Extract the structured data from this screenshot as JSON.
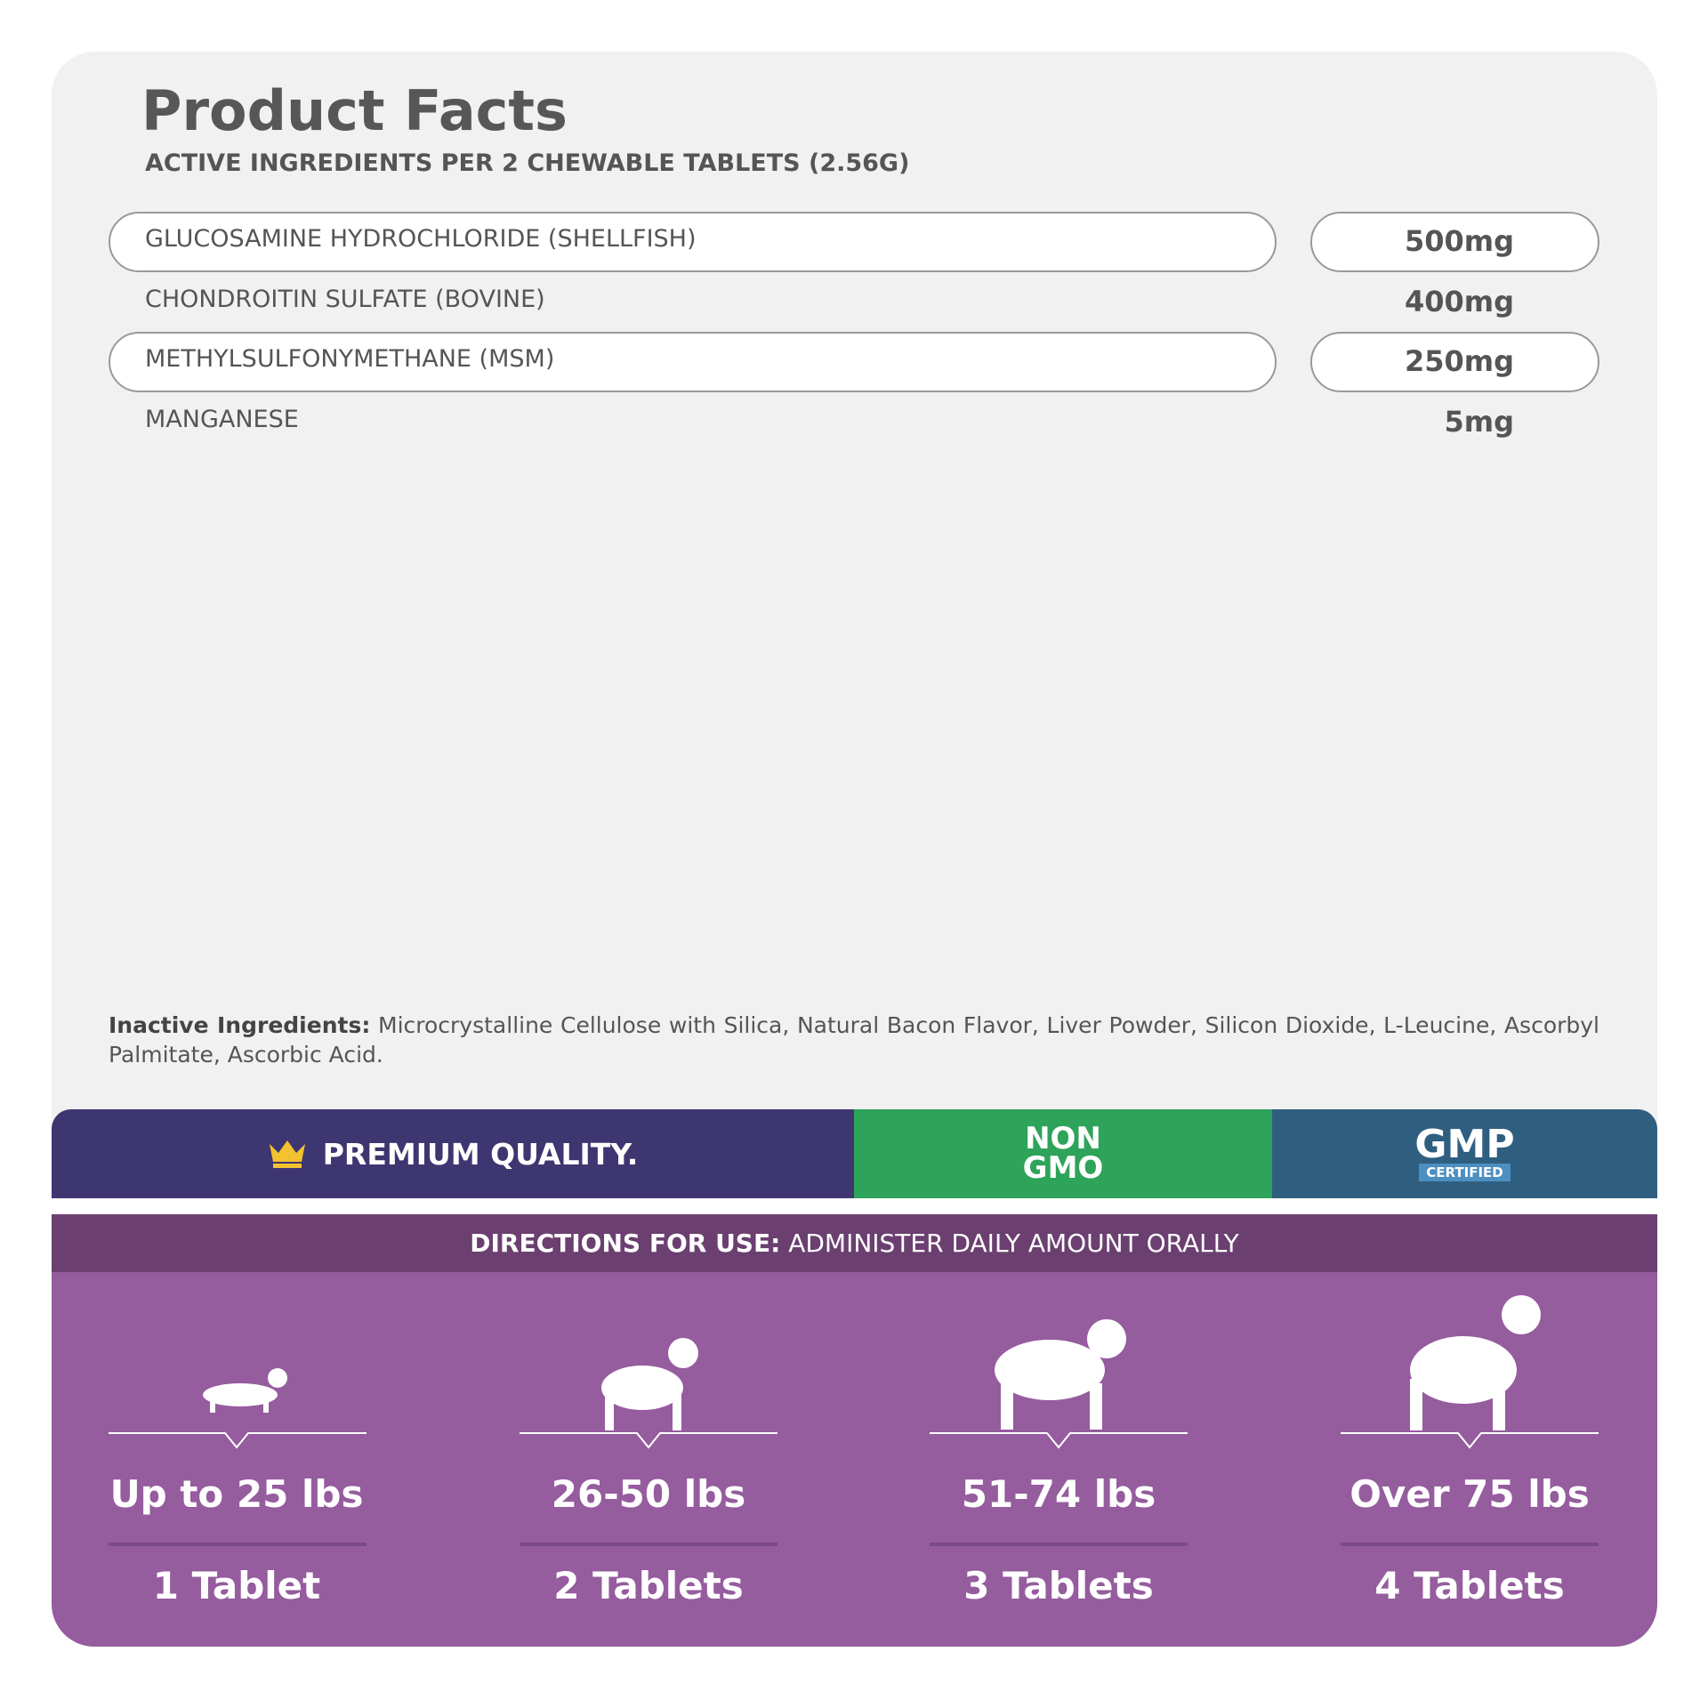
{
  "header": {
    "title": "Product Facts",
    "subtitle": "ACTIVE INGREDIENTS PER 2 CHEWABLE TABLETS (2.56G)"
  },
  "ingredients": [
    {
      "name": "GLUCOSAMINE HYDROCHLORIDE (SHELLFISH)",
      "amount": "500mg"
    },
    {
      "name": "CHONDROITIN SULFATE (BOVINE)",
      "amount": "400mg"
    },
    {
      "name": "METHYLSULFONYMETHANE (MSM)",
      "amount": "250mg"
    },
    {
      "name": "MANGANESE",
      "amount": "5mg"
    }
  ],
  "inactive": {
    "label": "Inactive Ingredients:",
    "text": "Microcrystalline Cellulose with Silica, Natural Bacon Flavor, Liver Powder, Silicon Dioxide, L-Leucine, Ascorbyl Palmitate, Ascorbic Acid."
  },
  "badges": {
    "premium": "PREMIUM QUALITY.",
    "non": "NON",
    "gmo": "GMO",
    "gmp": "GMP",
    "certified": "CERTIFIED"
  },
  "directions": {
    "label": "DIRECTIONS FOR USE:",
    "text": "ADMINISTER DAILY AMOUNT ORALLY",
    "doses": [
      {
        "weight": "Up to 25 lbs",
        "amount": "1 Tablet"
      },
      {
        "weight": "26-50 lbs",
        "amount": "2 Tablets"
      },
      {
        "weight": "51-74 lbs",
        "amount": "3 Tablets"
      },
      {
        "weight": "Over 75 lbs",
        "amount": "4 Tablets"
      }
    ]
  }
}
